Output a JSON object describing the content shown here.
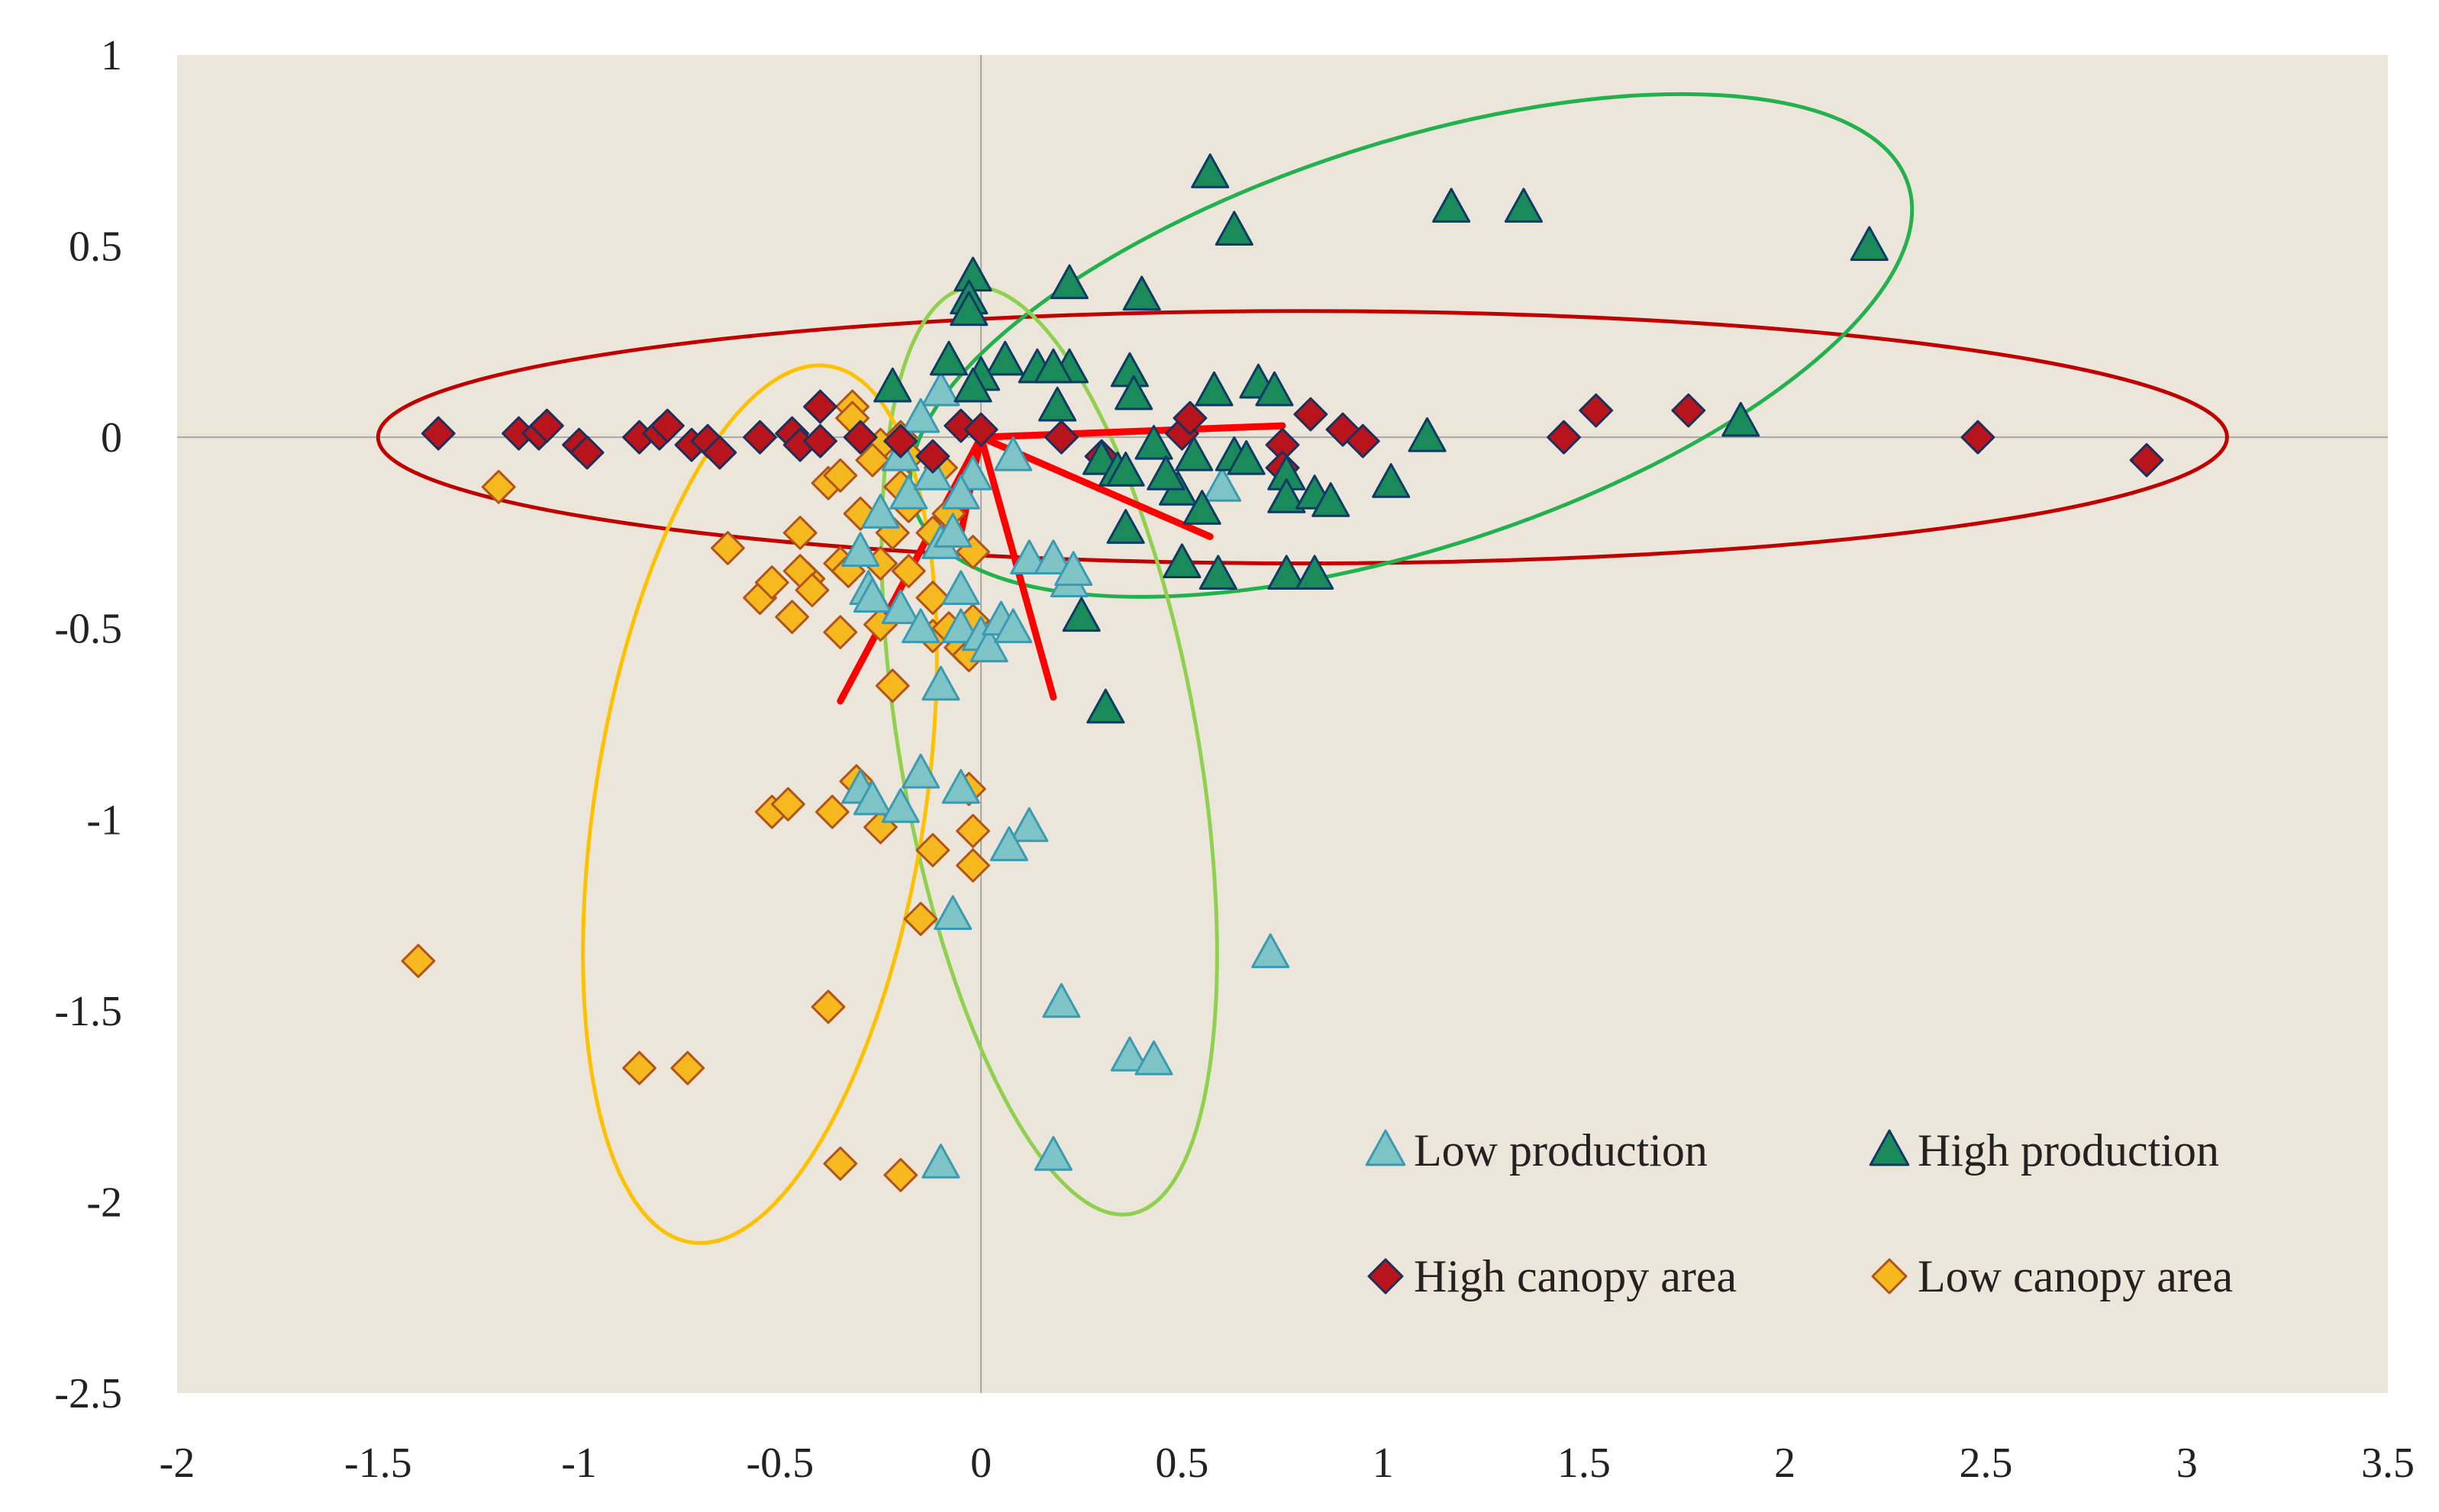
{
  "chart_data": {
    "type": "scatter",
    "title": "",
    "xlabel": "",
    "ylabel": "",
    "xlim": [
      -2,
      3.5
    ],
    "ylim": [
      -2.5,
      1
    ],
    "x_ticks": [
      "-2",
      "-1.5",
      "-1",
      "-0.5",
      "0",
      "0.5",
      "1",
      "1.5",
      "2",
      "2.5",
      "3",
      "3.5"
    ],
    "y_ticks": [
      "1",
      "0.5",
      "0",
      "-0.5",
      "-1",
      "-1.5",
      "-2",
      "-2.5"
    ],
    "grid": false,
    "zero_lines": true,
    "plot_background": "#ece6da",
    "legend_position": "bottom-right",
    "series": [
      {
        "name": "Low production",
        "marker": "triangle",
        "fill": "#7ec4c7",
        "stroke": "#3a9ab4",
        "points": [
          [
            -0.1,
            0.12
          ],
          [
            -0.15,
            0.05
          ],
          [
            -0.2,
            -0.05
          ],
          [
            -0.18,
            -0.15
          ],
          [
            -0.12,
            -0.1
          ],
          [
            -0.25,
            -0.2
          ],
          [
            -0.3,
            -0.3
          ],
          [
            -0.28,
            -0.4
          ],
          [
            -0.27,
            -0.42
          ],
          [
            -0.2,
            -0.45
          ],
          [
            -0.1,
            -0.28
          ],
          [
            -0.07,
            -0.25
          ],
          [
            -0.05,
            -0.4
          ],
          [
            -0.15,
            -0.5
          ],
          [
            -0.05,
            -0.5
          ],
          [
            0.0,
            -0.52
          ],
          [
            0.02,
            -0.55
          ],
          [
            0.05,
            -0.48
          ],
          [
            0.08,
            -0.5
          ],
          [
            -0.1,
            -0.65
          ],
          [
            0.12,
            -0.32
          ],
          [
            0.18,
            -0.32
          ],
          [
            0.22,
            -0.38
          ],
          [
            0.23,
            -0.35
          ],
          [
            -0.02,
            -0.1
          ],
          [
            0.08,
            -0.05
          ],
          [
            -0.05,
            -0.15
          ],
          [
            0.6,
            -0.13
          ],
          [
            -0.3,
            -0.92
          ],
          [
            -0.27,
            -0.95
          ],
          [
            -0.2,
            -0.97
          ],
          [
            -0.15,
            -0.88
          ],
          [
            -0.05,
            -0.92
          ],
          [
            0.12,
            -1.02
          ],
          [
            0.07,
            -1.07
          ],
          [
            -0.07,
            -1.25
          ],
          [
            0.72,
            -1.35
          ],
          [
            0.2,
            -1.48
          ],
          [
            0.37,
            -1.62
          ],
          [
            0.43,
            -1.63
          ],
          [
            0.18,
            -1.88
          ],
          [
            -0.1,
            -1.9
          ]
        ]
      },
      {
        "name": "High production",
        "marker": "triangle",
        "fill": "#1a8a5a",
        "stroke": "#0d3b66",
        "points": [
          [
            0.57,
            0.69
          ],
          [
            1.17,
            0.6
          ],
          [
            1.35,
            0.6
          ],
          [
            0.63,
            0.54
          ],
          [
            2.21,
            0.5
          ],
          [
            -0.02,
            0.42
          ],
          [
            0.22,
            0.4
          ],
          [
            0.4,
            0.37
          ],
          [
            -0.03,
            0.36
          ],
          [
            -0.03,
            0.33
          ],
          [
            -0.08,
            0.2
          ],
          [
            0.06,
            0.2
          ],
          [
            0.22,
            0.18
          ],
          [
            0.37,
            0.17
          ],
          [
            0.14,
            0.18
          ],
          [
            0.18,
            0.18
          ],
          [
            0.0,
            0.16
          ],
          [
            -0.02,
            0.13
          ],
          [
            0.38,
            0.11
          ],
          [
            0.58,
            0.12
          ],
          [
            0.69,
            0.14
          ],
          [
            0.73,
            0.12
          ],
          [
            -0.22,
            0.13
          ],
          [
            0.19,
            0.08
          ],
          [
            1.89,
            0.04
          ],
          [
            1.11,
            0.0
          ],
          [
            0.43,
            -0.02
          ],
          [
            0.53,
            -0.05
          ],
          [
            0.63,
            -0.05
          ],
          [
            0.66,
            -0.06
          ],
          [
            0.3,
            -0.06
          ],
          [
            0.34,
            -0.09
          ],
          [
            0.36,
            -0.09
          ],
          [
            0.76,
            -0.1
          ],
          [
            0.76,
            -0.16
          ],
          [
            0.83,
            -0.15
          ],
          [
            0.87,
            -0.17
          ],
          [
            1.02,
            -0.12
          ],
          [
            0.49,
            -0.14
          ],
          [
            0.46,
            -0.1
          ],
          [
            0.55,
            -0.19
          ],
          [
            0.36,
            -0.24
          ],
          [
            0.5,
            -0.33
          ],
          [
            0.59,
            -0.36
          ],
          [
            0.76,
            -0.36
          ],
          [
            0.83,
            -0.36
          ],
          [
            0.25,
            -0.47
          ],
          [
            0.31,
            -0.71
          ]
        ]
      },
      {
        "name": "High canopy area",
        "marker": "diamond",
        "fill": "#b8141b",
        "stroke": "#1f2f5c",
        "points": [
          [
            -1.35,
            0.01
          ],
          [
            -1.15,
            0.01
          ],
          [
            -1.1,
            0.01
          ],
          [
            -1.08,
            0.03
          ],
          [
            -1.0,
            -0.02
          ],
          [
            -0.98,
            -0.04
          ],
          [
            -0.85,
            0.0
          ],
          [
            -0.8,
            0.01
          ],
          [
            -0.78,
            0.03
          ],
          [
            -0.72,
            -0.02
          ],
          [
            -0.68,
            -0.01
          ],
          [
            -0.65,
            -0.04
          ],
          [
            -0.55,
            0.0
          ],
          [
            -0.47,
            0.01
          ],
          [
            -0.45,
            -0.02
          ],
          [
            -0.4,
            0.08
          ],
          [
            -0.4,
            -0.01
          ],
          [
            -0.3,
            0.0
          ],
          [
            -0.2,
            -0.01
          ],
          [
            -0.12,
            -0.05
          ],
          [
            -0.05,
            0.03
          ],
          [
            0.0,
            0.02
          ],
          [
            0.2,
            0.0
          ],
          [
            0.3,
            -0.05
          ],
          [
            0.5,
            0.01
          ],
          [
            0.52,
            0.05
          ],
          [
            0.75,
            -0.02
          ],
          [
            0.75,
            -0.08
          ],
          [
            0.82,
            0.06
          ],
          [
            0.9,
            0.02
          ],
          [
            0.95,
            -0.01
          ],
          [
            1.45,
            0.0
          ],
          [
            1.53,
            0.07
          ],
          [
            1.76,
            0.07
          ],
          [
            2.48,
            0.0
          ],
          [
            2.9,
            -0.06
          ]
        ]
      },
      {
        "name": "Low canopy area",
        "marker": "diamond",
        "fill": "#f5b81f",
        "stroke": "#b2541a",
        "points": [
          [
            -1.2,
            -0.13
          ],
          [
            -0.32,
            0.08
          ],
          [
            -0.32,
            0.05
          ],
          [
            -0.2,
            0.0
          ],
          [
            -0.25,
            -0.02
          ],
          [
            -0.18,
            -0.05
          ],
          [
            -0.27,
            -0.06
          ],
          [
            -0.1,
            -0.08
          ],
          [
            -0.38,
            -0.12
          ],
          [
            -0.35,
            -0.1
          ],
          [
            -0.2,
            -0.13
          ],
          [
            -0.18,
            -0.18
          ],
          [
            -0.3,
            -0.2
          ],
          [
            -0.22,
            -0.25
          ],
          [
            -0.12,
            -0.25
          ],
          [
            -0.08,
            -0.2
          ],
          [
            -0.45,
            -0.25
          ],
          [
            -0.63,
            -0.29
          ],
          [
            -0.55,
            -0.42
          ],
          [
            -0.52,
            -0.38
          ],
          [
            -0.47,
            -0.47
          ],
          [
            -0.43,
            -0.37
          ],
          [
            -0.45,
            -0.35
          ],
          [
            -0.42,
            -0.4
          ],
          [
            -0.35,
            -0.33
          ],
          [
            -0.33,
            -0.35
          ],
          [
            -0.25,
            -0.33
          ],
          [
            -0.18,
            -0.35
          ],
          [
            -0.12,
            -0.42
          ],
          [
            -0.02,
            -0.3
          ],
          [
            -0.35,
            -0.51
          ],
          [
            -0.25,
            -0.49
          ],
          [
            -0.12,
            -0.52
          ],
          [
            -0.08,
            -0.5
          ],
          [
            -0.05,
            -0.55
          ],
          [
            -0.03,
            -0.57
          ],
          [
            -0.02,
            -0.48
          ],
          [
            -0.22,
            -0.65
          ],
          [
            -0.31,
            -0.9
          ],
          [
            -0.03,
            -0.92
          ],
          [
            -0.52,
            -0.98
          ],
          [
            -0.48,
            -0.96
          ],
          [
            -0.37,
            -0.98
          ],
          [
            -0.25,
            -1.02
          ],
          [
            -0.02,
            -1.03
          ],
          [
            -0.12,
            -1.08
          ],
          [
            -0.02,
            -1.12
          ],
          [
            -0.15,
            -1.26
          ],
          [
            -1.4,
            -1.37
          ],
          [
            -0.38,
            -1.49
          ],
          [
            -0.85,
            -1.65
          ],
          [
            -0.73,
            -1.65
          ],
          [
            -0.35,
            -1.9
          ],
          [
            -0.2,
            -1.93
          ]
        ]
      }
    ],
    "ellipses": [
      {
        "name": "High canopy area",
        "color": "#c00000",
        "center": [
          0.8,
          0.0
        ],
        "rx": 2.3,
        "ry": 0.33,
        "angle_deg": 0
      },
      {
        "name": "High production",
        "color": "#22b14c",
        "center": [
          1.07,
          0.24
        ],
        "rx": 1.3,
        "ry": 0.53,
        "angle_deg": 18
      },
      {
        "name": "Low production",
        "color": "#8fd14f",
        "center": [
          0.17,
          -0.82
        ],
        "rx": 0.37,
        "ry": 1.23,
        "angle_deg": 10
      },
      {
        "name": "Low canopy area",
        "color": "#ffc000",
        "center": [
          -0.55,
          -0.96
        ],
        "rx": 0.41,
        "ry": 1.16,
        "angle_deg": -9
      }
    ],
    "vectors": {
      "color": "#ff0000",
      "origin": [
        0.0,
        0.0
      ],
      "ends": [
        [
          0.75,
          0.03
        ],
        [
          0.57,
          -0.26
        ],
        [
          0.18,
          -0.68
        ],
        [
          -0.35,
          -0.69
        ],
        [
          -0.05,
          -0.25
        ]
      ]
    },
    "legend": [
      {
        "label": "Low production",
        "series": 0
      },
      {
        "label": "High production",
        "series": 1
      },
      {
        "label": "High canopy area",
        "series": 2
      },
      {
        "label": "Low canopy area",
        "series": 3
      }
    ]
  }
}
